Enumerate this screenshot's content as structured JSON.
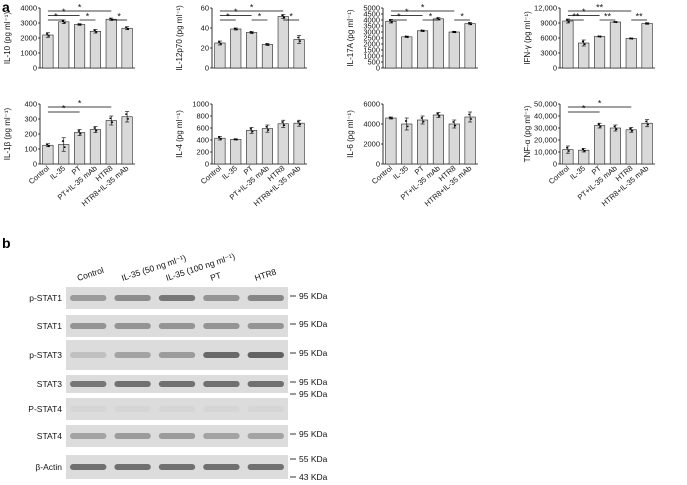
{
  "panel_labels": {
    "a": "a",
    "b": "b"
  },
  "categories": [
    "Control",
    "IL-35",
    "PT",
    "PT+IL-35 mAb",
    "HTR8",
    "HTR8+IL-35 mAb"
  ],
  "chart_data": [
    {
      "type": "bar",
      "ylabel": "IL-10 (pg ml⁻¹)",
      "ylim": [
        0,
        4000
      ],
      "yticks": [
        "0",
        "1000",
        "2000",
        "3000",
        "4000"
      ],
      "series": [
        {
          "name": "",
          "values": [
            2200,
            3080,
            2900,
            2450,
            3250,
            2650
          ],
          "errors": [
            150,
            120,
            50,
            120,
            80,
            100
          ]
        }
      ],
      "sig": [
        {
          "from": 0,
          "to": 1,
          "label": "*"
        },
        {
          "from": 0,
          "to": 2,
          "label": "*"
        },
        {
          "from": 0,
          "to": 4,
          "label": "*"
        },
        {
          "from": 2,
          "to": 3,
          "label": "*"
        },
        {
          "from": 4,
          "to": 5,
          "label": "*"
        }
      ]
    },
    {
      "type": "bar",
      "ylabel": "IL-12p70 (pg ml⁻¹)",
      "ylim": [
        0,
        60
      ],
      "yticks": [
        "0",
        "20",
        "40",
        "60"
      ],
      "series": [
        {
          "name": "",
          "values": [
            25,
            39,
            35.5,
            23.5,
            51.5,
            28.5
          ],
          "errors": [
            2,
            1,
            1,
            1,
            2,
            4
          ]
        }
      ],
      "sig": [
        {
          "from": 0,
          "to": 1,
          "label": "*"
        },
        {
          "from": 0,
          "to": 2,
          "label": "*"
        },
        {
          "from": 0,
          "to": 4,
          "label": "*"
        },
        {
          "from": 2,
          "to": 3,
          "label": "*"
        },
        {
          "from": 4,
          "to": 5,
          "label": "*"
        }
      ]
    },
    {
      "type": "bar",
      "ylabel": "IL-17A (pg ml⁻¹)",
      "ylim": [
        0,
        5000
      ],
      "yticks": [
        "0",
        "500",
        "1000",
        "1500",
        "2000",
        "2500",
        "3000",
        "3500",
        "4000",
        "4500",
        "5000"
      ],
      "series": [
        {
          "name": "",
          "values": [
            3900,
            2600,
            3100,
            4100,
            3000,
            3700
          ],
          "errors": [
            150,
            60,
            60,
            100,
            60,
            100
          ]
        }
      ],
      "sig": [
        {
          "from": 0,
          "to": 1,
          "label": "*"
        },
        {
          "from": 0,
          "to": 2,
          "label": "*"
        },
        {
          "from": 0,
          "to": 4,
          "label": "*"
        },
        {
          "from": 2,
          "to": 3,
          "label": "*"
        },
        {
          "from": 4,
          "to": 5,
          "label": "*"
        }
      ]
    },
    {
      "type": "bar",
      "ylabel": "IFN-γ (pg ml⁻¹)",
      "ylim": [
        0,
        12000
      ],
      "yticks": [
        "0",
        "3000",
        "6000",
        "9000",
        "12,000"
      ],
      "series": [
        {
          "name": "",
          "values": [
            9400,
            5000,
            6300,
            9200,
            5900,
            8900
          ],
          "errors": [
            400,
            600,
            100,
            100,
            100,
            150
          ]
        }
      ],
      "sig": [
        {
          "from": 0,
          "to": 1,
          "label": "**"
        },
        {
          "from": 0,
          "to": 2,
          "label": "*"
        },
        {
          "from": 0,
          "to": 4,
          "label": "**"
        },
        {
          "from": 2,
          "to": 3,
          "label": "**"
        },
        {
          "from": 4,
          "to": 5,
          "label": "**"
        }
      ]
    },
    {
      "type": "bar",
      "ylabel": "IL-1β (pg ml⁻¹)",
      "ylim": [
        0,
        400
      ],
      "yticks": [
        "0",
        "100",
        "200",
        "300",
        "400"
      ],
      "series": [
        {
          "name": "",
          "values": [
            125,
            130,
            210,
            230,
            290,
            315
          ],
          "errors": [
            10,
            45,
            20,
            20,
            30,
            35
          ]
        }
      ],
      "sig": [
        {
          "from": 0,
          "to": 2,
          "label": "*"
        },
        {
          "from": 0,
          "to": 4,
          "label": "*"
        }
      ]
    },
    {
      "type": "bar",
      "ylabel": "IL-4 (pg ml⁻¹)",
      "ylim": [
        0,
        1000
      ],
      "yticks": [
        "0",
        "200",
        "400",
        "600",
        "800",
        "1000"
      ],
      "series": [
        {
          "name": "",
          "values": [
            430,
            410,
            560,
            590,
            670,
            680
          ],
          "errors": [
            30,
            10,
            50,
            60,
            60,
            50
          ]
        }
      ],
      "sig": []
    },
    {
      "type": "bar",
      "ylabel": "IL-6 (pg ml⁻¹)",
      "ylim": [
        0,
        6000
      ],
      "yticks": [
        "0",
        "2000",
        "4000",
        "6000"
      ],
      "series": [
        {
          "name": "",
          "values": [
            4600,
            4000,
            4400,
            4900,
            4000,
            4700
          ],
          "errors": [
            100,
            600,
            400,
            250,
            400,
            500
          ]
        }
      ],
      "sig": []
    },
    {
      "type": "bar",
      "ylabel": "TNF-α (pg ml⁻¹)",
      "ylim": [
        0,
        50000
      ],
      "yticks": [
        "0",
        "10,000",
        "20,000",
        "30,000",
        "40,000",
        "50,000"
      ],
      "series": [
        {
          "name": "",
          "values": [
            12000,
            11500,
            32000,
            30000,
            28500,
            34000
          ],
          "errors": [
            3000,
            1500,
            2000,
            2500,
            2000,
            3000
          ]
        }
      ],
      "sig": [
        {
          "from": 0,
          "to": 2,
          "label": "*"
        },
        {
          "from": 0,
          "to": 4,
          "label": "*"
        }
      ]
    }
  ],
  "blot": {
    "lanes": [
      "Control",
      "IL-35 (50 ng ml⁻¹)",
      "IL-35 (100 ng ml⁻¹)",
      "PT",
      "HTR8"
    ],
    "rows": [
      {
        "label": "p-STAT1",
        "kda": "95 KDa",
        "intensity": [
          0.45,
          0.55,
          0.7,
          0.5,
          0.6
        ]
      },
      {
        "label": "STAT1",
        "kda": "95 KDa",
        "intensity": [
          0.5,
          0.5,
          0.5,
          0.5,
          0.5
        ]
      },
      {
        "label": "p-STAT3",
        "kda": "95 KDa",
        "intensity": [
          0.2,
          0.4,
          0.45,
          0.8,
          0.85
        ]
      },
      {
        "label": "STAT3",
        "kda": "95 KDa",
        "intensity": [
          0.7,
          0.75,
          0.75,
          0.75,
          0.75
        ]
      },
      {
        "label": "P-STAT4",
        "kda": "95 KDa",
        "intensity": [
          0.05,
          0.05,
          0.05,
          0.05,
          0.05
        ]
      },
      {
        "label": "STAT4",
        "kda": "95 KDa",
        "intensity": [
          0.4,
          0.45,
          0.45,
          0.4,
          0.4
        ]
      },
      {
        "label": "β-Actin",
        "kda": "55 KDa",
        "kda2": "43 KDa",
        "intensity": [
          0.75,
          0.75,
          0.75,
          0.75,
          0.75
        ]
      }
    ]
  }
}
